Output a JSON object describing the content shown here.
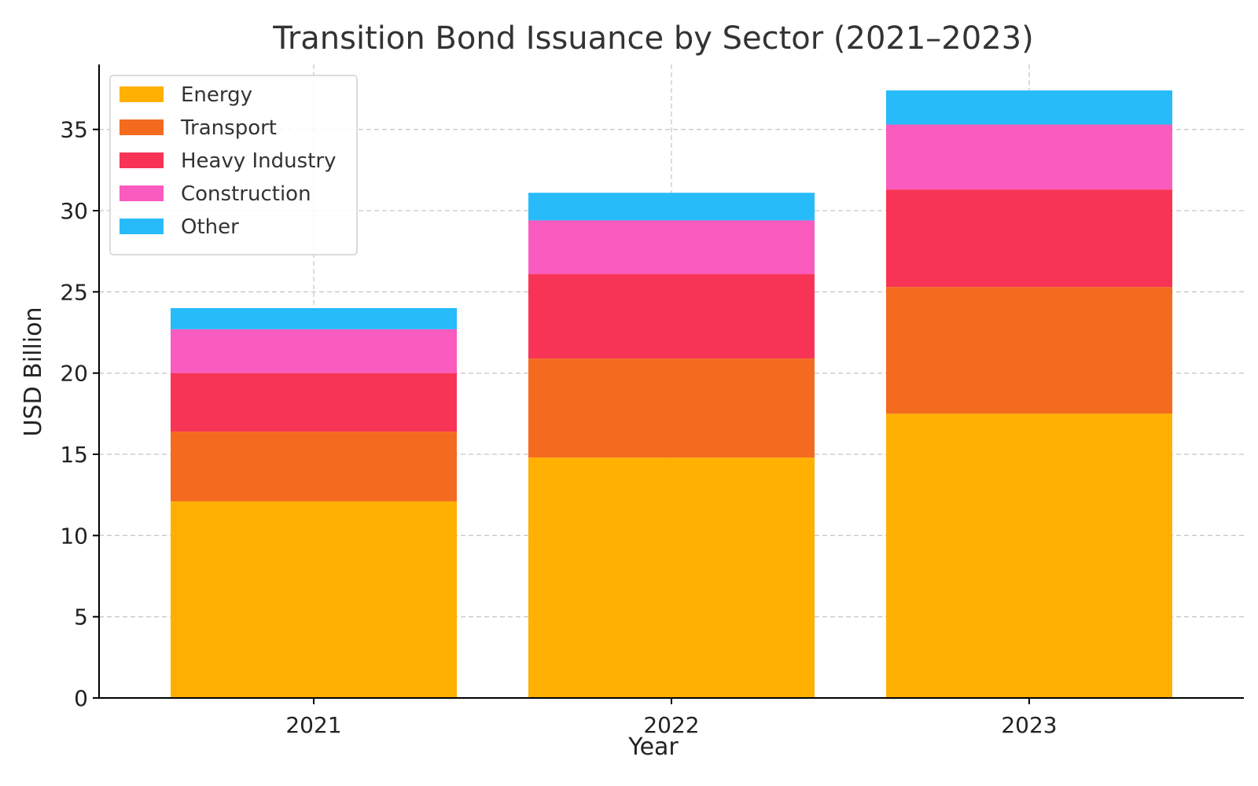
{
  "chart_data": {
    "type": "bar",
    "stacked": true,
    "title": "Transition Bond Issuance by Sector (2021–2023)",
    "xlabel": "Year",
    "ylabel": "USD Billion",
    "categories": [
      "2021",
      "2022",
      "2023"
    ],
    "ylim": [
      0,
      39
    ],
    "yticks": [
      0,
      5,
      10,
      15,
      20,
      25,
      30,
      35
    ],
    "grid": true,
    "legend_position": "top-left",
    "series": [
      {
        "name": "Energy",
        "color": "#FFB000",
        "values": [
          12.1,
          14.8,
          17.5
        ]
      },
      {
        "name": "Transport",
        "color": "#F46B20",
        "values": [
          4.3,
          6.1,
          7.8
        ]
      },
      {
        "name": "Heavy Industry",
        "color": "#F73455",
        "values": [
          3.6,
          5.2,
          6.0
        ]
      },
      {
        "name": "Construction",
        "color": "#FA5BBE",
        "values": [
          2.7,
          3.3,
          4.0
        ]
      },
      {
        "name": "Other",
        "color": "#27BBFA",
        "values": [
          1.3,
          1.7,
          2.1
        ]
      }
    ]
  }
}
